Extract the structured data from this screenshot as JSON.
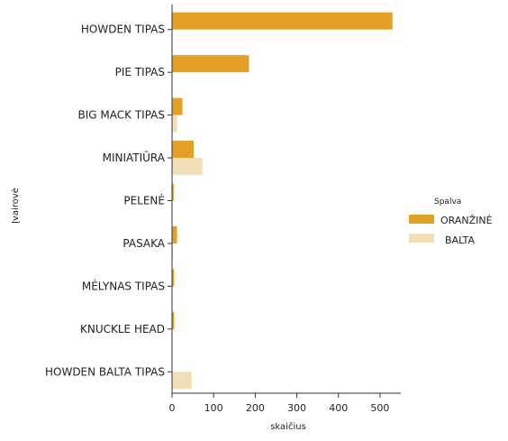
{
  "chart_data": {
    "type": "bar",
    "orientation": "horizontal",
    "categories": [
      "HOWDEN TIPAS",
      "PIE TIPAS",
      "BIG MACK TIPAS",
      "MINIATIŪRA",
      "PELENĖ",
      "PASAKA",
      "MĖLYNAS TIPAS",
      "KNUCKLE HEAD",
      "HOWDEN BALTA TIPAS"
    ],
    "series": [
      {
        "name": "ORANŽINĖ",
        "color": "#e4a024",
        "values": [
          530,
          185,
          25,
          52,
          4,
          12,
          5,
          5,
          0
        ]
      },
      {
        "name": "BALTA",
        "color": "#f1dfb8",
        "values": [
          0,
          0,
          12,
          73,
          1,
          2,
          1,
          1,
          47
        ]
      }
    ],
    "xlabel": "skaičius",
    "ylabel": "Įvairovė",
    "xlim": [
      0,
      550
    ],
    "xticks": [
      0,
      100,
      200,
      300,
      400,
      500
    ],
    "legend": {
      "title": "Spalva",
      "position": "right"
    },
    "grid": false
  }
}
